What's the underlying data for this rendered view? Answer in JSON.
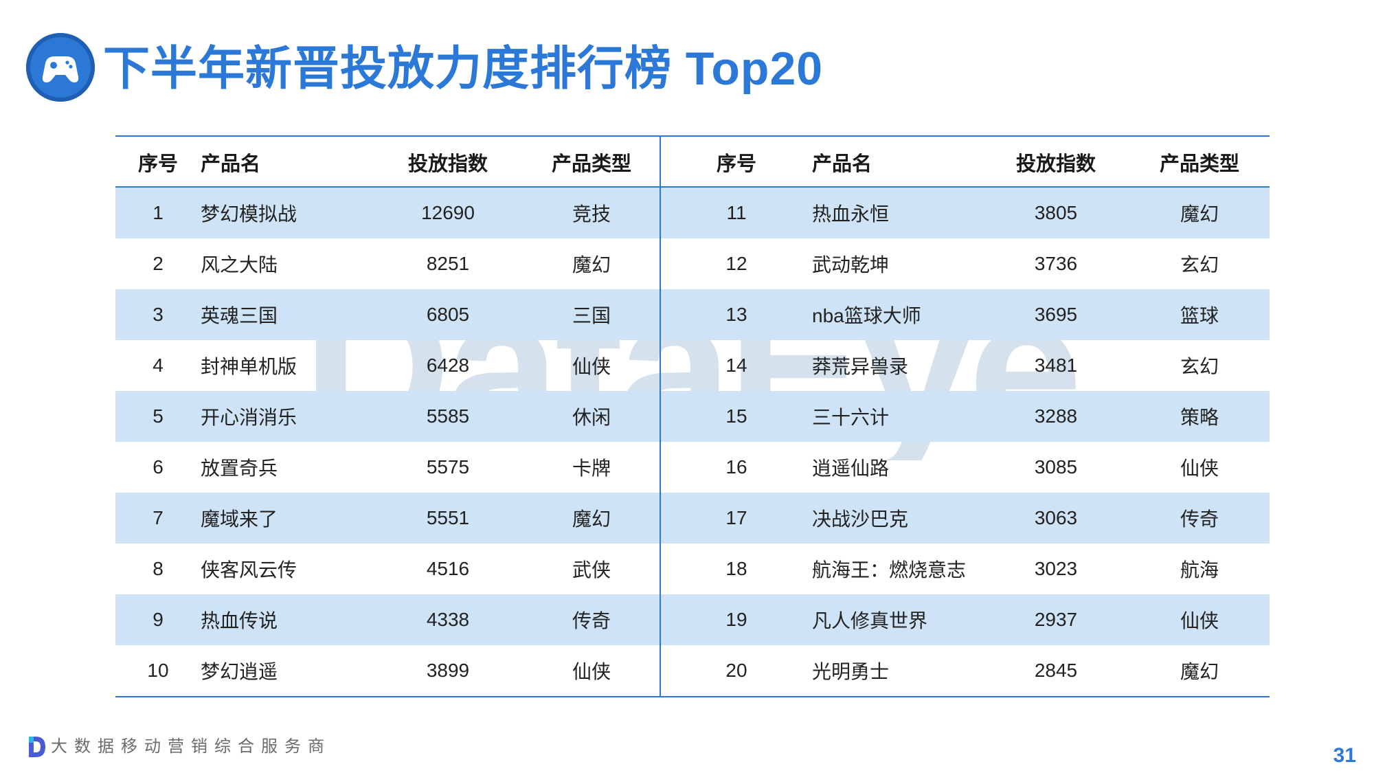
{
  "header": {
    "title": "下半年新晋投放力度排行榜 Top20"
  },
  "watermark": {
    "text": "DataEye"
  },
  "table": {
    "columns": [
      "序号",
      "产品名",
      "投放指数",
      "产品类型"
    ],
    "left_rows": [
      {
        "no": "1",
        "name": "梦幻模拟战",
        "index": "12690",
        "type": "竞技"
      },
      {
        "no": "2",
        "name": "风之大陆",
        "index": "8251",
        "type": "魔幻"
      },
      {
        "no": "3",
        "name": "英魂三国",
        "index": "6805",
        "type": "三国"
      },
      {
        "no": "4",
        "name": "封神单机版",
        "index": "6428",
        "type": "仙侠"
      },
      {
        "no": "5",
        "name": "开心消消乐",
        "index": "5585",
        "type": "休闲"
      },
      {
        "no": "6",
        "name": "放置奇兵",
        "index": "5575",
        "type": "卡牌"
      },
      {
        "no": "7",
        "name": "魔域来了",
        "index": "5551",
        "type": "魔幻"
      },
      {
        "no": "8",
        "name": "侠客风云传",
        "index": "4516",
        "type": "武侠"
      },
      {
        "no": "9",
        "name": "热血传说",
        "index": "4338",
        "type": "传奇"
      },
      {
        "no": "10",
        "name": "梦幻逍遥",
        "index": "3899",
        "type": "仙侠"
      }
    ],
    "right_rows": [
      {
        "no": "11",
        "name": "热血永恒",
        "index": "3805",
        "type": "魔幻"
      },
      {
        "no": "12",
        "name": "武动乾坤",
        "index": "3736",
        "type": "玄幻"
      },
      {
        "no": "13",
        "name": "nba篮球大师",
        "index": "3695",
        "type": "篮球"
      },
      {
        "no": "14",
        "name": "莽荒异兽录",
        "index": "3481",
        "type": "玄幻"
      },
      {
        "no": "15",
        "name": "三十六计",
        "index": "3288",
        "type": "策略"
      },
      {
        "no": "16",
        "name": "逍遥仙路",
        "index": "3085",
        "type": "仙侠"
      },
      {
        "no": "17",
        "name": "决战沙巴克",
        "index": "3063",
        "type": "传奇"
      },
      {
        "no": "18",
        "name": "航海王：燃烧意志",
        "index": "3023",
        "type": "航海"
      },
      {
        "no": "19",
        "name": "凡人修真世界",
        "index": "2937",
        "type": "仙侠"
      },
      {
        "no": "20",
        "name": "光明勇士",
        "index": "2845",
        "type": "魔幻"
      }
    ]
  },
  "footer": {
    "tagline": "大数据移动营销综合服务商",
    "page_number": "31"
  },
  "colors": {
    "accent": "#2b78d6",
    "row_shade": "#cfe3f6",
    "watermark": "#9ab8d4"
  },
  "icons": {
    "title_icon": "gamepad-icon",
    "footer_icon": "dataeye-logo-icon"
  }
}
